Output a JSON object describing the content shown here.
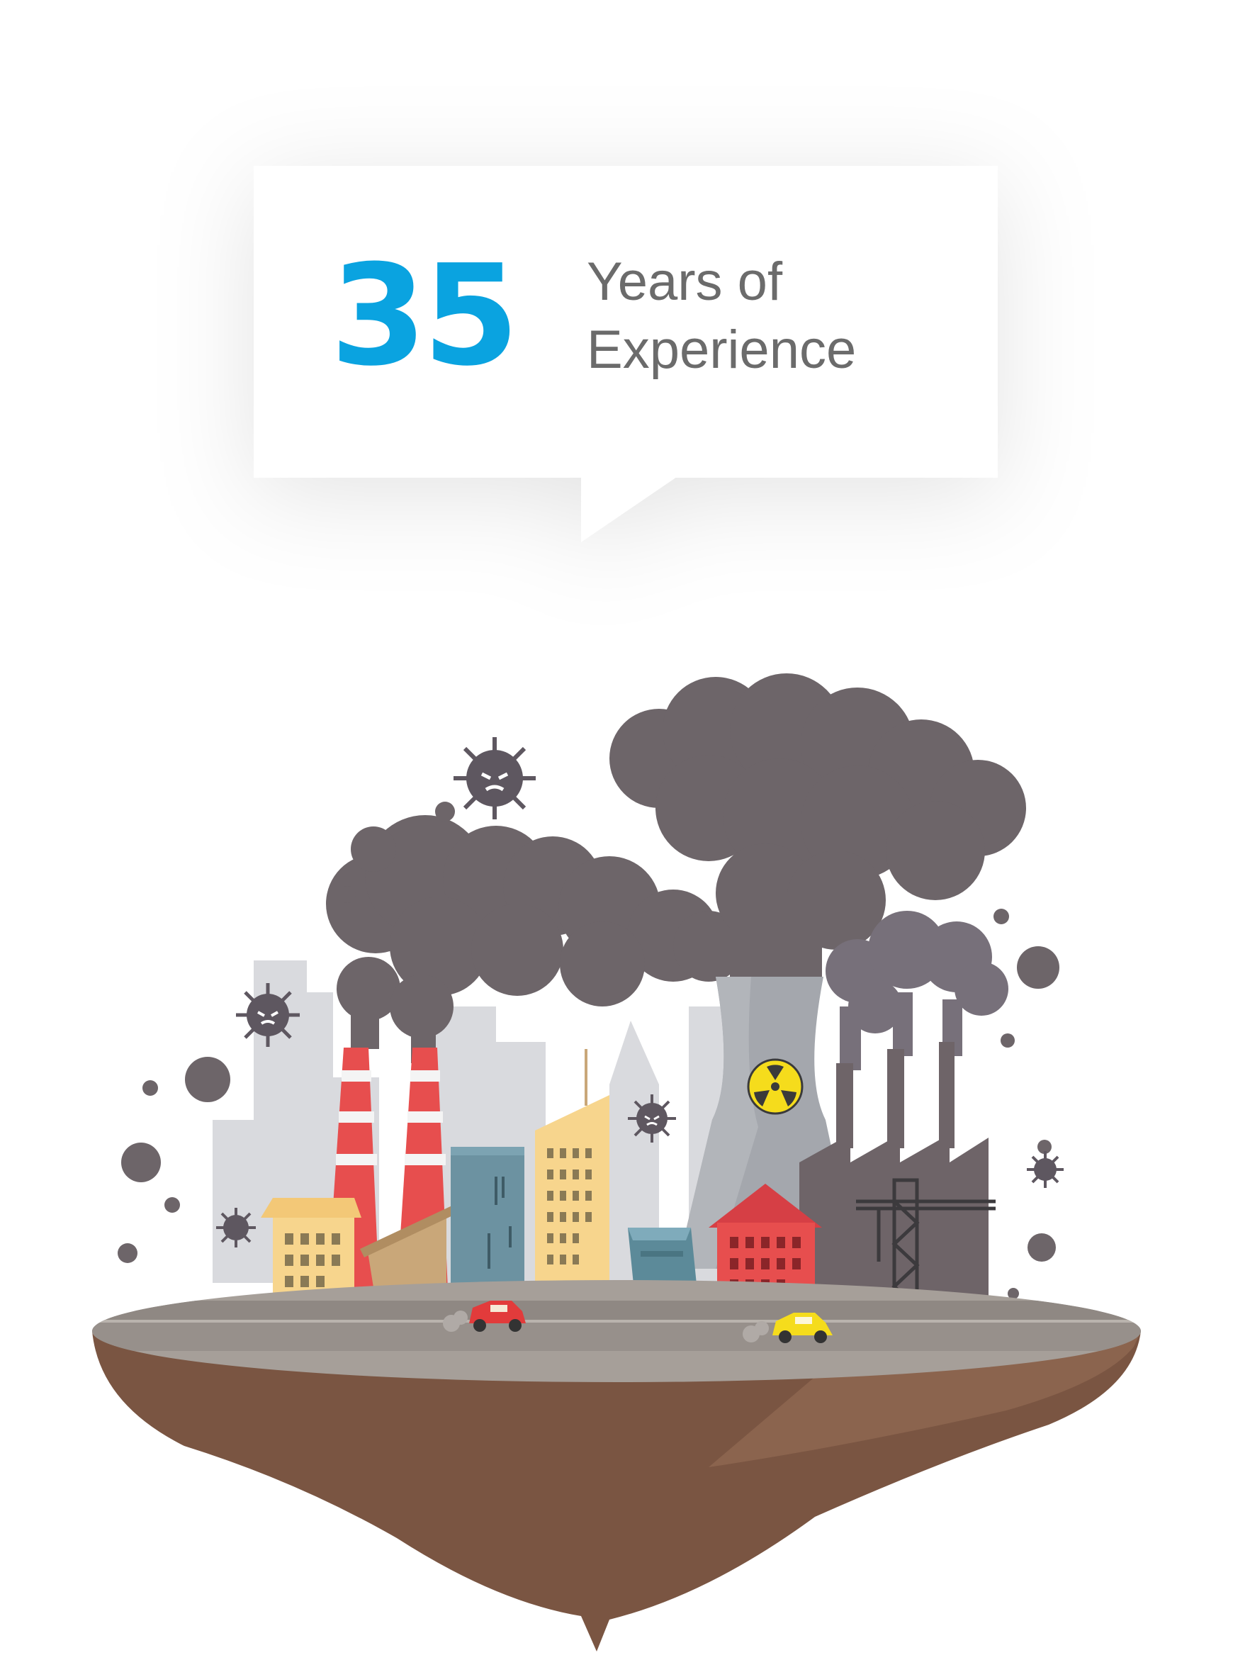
{
  "badge": {
    "number": "35",
    "label_line1": "Years of",
    "label_line2": "Experience",
    "number_color": "#0aa3e0",
    "label_color": "#6b6b6b"
  },
  "illustration": {
    "icons": [
      "smoke-cloud-icon",
      "virus-icon",
      "radiation-icon",
      "factory-icon",
      "car-icon",
      "crane-icon"
    ],
    "colors": {
      "smoke": "#6d6569",
      "soil": "#7a5542",
      "road": "#8f8883",
      "chimney_red": "#e74e4e",
      "radiation_yellow": "#f5dc1c"
    }
  }
}
